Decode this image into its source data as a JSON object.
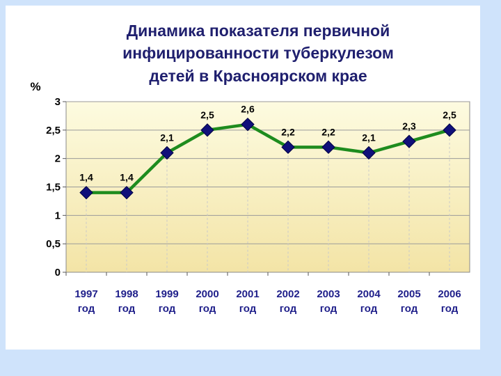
{
  "chart_data": {
    "type": "line",
    "title_lines": [
      "Динамика показателя первичной",
      "инфицированности туберкулезом",
      "детей в Красноярском крае"
    ],
    "ylabel": "%",
    "ylim": [
      0,
      3
    ],
    "yticks": [
      "0",
      "0,5",
      "1",
      "1,5",
      "2",
      "2,5",
      "3"
    ],
    "ytick_values": [
      0,
      0.5,
      1,
      1.5,
      2,
      2.5,
      3
    ],
    "categories": [
      [
        "1997",
        "год"
      ],
      [
        "1998",
        "год"
      ],
      [
        "1999",
        "год"
      ],
      [
        "2000",
        "год"
      ],
      [
        "2001",
        "год"
      ],
      [
        "2002",
        "год"
      ],
      [
        "2003",
        "год"
      ],
      [
        "2004",
        "год"
      ],
      [
        "2005",
        "год"
      ],
      [
        "2006",
        "год"
      ]
    ],
    "values": [
      1.4,
      1.4,
      2.1,
      2.5,
      2.6,
      2.2,
      2.2,
      2.1,
      2.3,
      2.5
    ],
    "data_labels": [
      "1,4",
      "1,4",
      "2,1",
      "2,5",
      "2,6",
      "2,2",
      "2,2",
      "2,1",
      "2,3",
      "2,5"
    ],
    "grid": true,
    "legend": "none",
    "colors": {
      "line": "#1e8c1e",
      "marker": "#10107a",
      "plot_top": "#fdfbe0",
      "plot_bottom": "#f3e4a6",
      "title": "#1f1f6e",
      "background": "#cfe3fb"
    }
  }
}
